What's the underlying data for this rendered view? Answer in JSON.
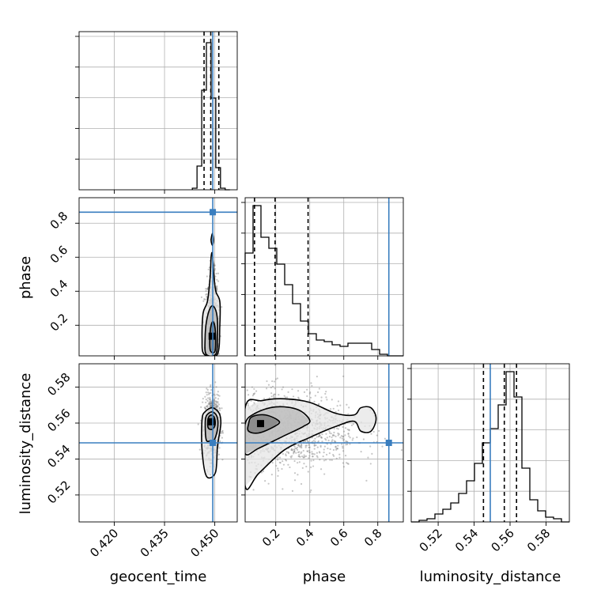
{
  "chart_data": {
    "type": "corner",
    "parameters": [
      {
        "name": "geocent_time",
        "range": [
          0.4095,
          0.4567
        ],
        "ticks": [
          "0.420",
          "0.435",
          "0.450"
        ],
        "tick_values": [
          0.42,
          0.435,
          0.45
        ],
        "truth": 0.4494,
        "quantiles": [
          0.4468,
          0.4488,
          0.4512
        ]
      },
      {
        "name": "phase",
        "range": [
          0.02,
          0.95
        ],
        "ticks": [
          "0.2",
          "0.4",
          "0.6",
          "0.8"
        ],
        "tick_values": [
          0.2,
          0.4,
          0.6,
          0.8
        ],
        "truth": 0.865,
        "quantiles": [
          0.075,
          0.196,
          0.39
        ]
      },
      {
        "name": "luminosity_distance",
        "range": [
          0.505,
          0.593
        ],
        "ticks": [
          "0.52",
          "0.54",
          "0.56",
          "0.58"
        ],
        "tick_values": [
          0.52,
          0.54,
          0.56,
          0.58
        ],
        "truth": 0.549,
        "quantiles": [
          0.5452,
          0.5568,
          0.5636
        ]
      }
    ],
    "histograms": {
      "geocent_time": {
        "edges": [
          0.4433,
          0.4447,
          0.4461,
          0.4475,
          0.4489,
          0.4503,
          0.4517,
          0.4531,
          0.4545
        ],
        "counts": [
          0.01,
          0.15,
          0.63,
          0.93,
          0.58,
          0.14,
          0.01,
          0.0
        ]
      },
      "phase": {
        "edges": [
          0.02,
          0.0665,
          0.113,
          0.1595,
          0.206,
          0.2525,
          0.299,
          0.3455,
          0.392,
          0.4385,
          0.485,
          0.5315,
          0.578,
          0.6245,
          0.671,
          0.7175,
          0.764,
          0.8105,
          0.857,
          0.9035,
          0.95
        ],
        "counts": [
          0.65,
          0.95,
          0.75,
          0.68,
          0.58,
          0.45,
          0.33,
          0.22,
          0.14,
          0.1,
          0.09,
          0.07,
          0.06,
          0.08,
          0.08,
          0.08,
          0.04,
          0.01,
          0.0,
          0.0
        ]
      },
      "luminosity_distance": {
        "edges": [
          0.505,
          0.5094,
          0.5138,
          0.5182,
          0.5226,
          0.527,
          0.5314,
          0.5358,
          0.5402,
          0.5446,
          0.549,
          0.5534,
          0.5578,
          0.5622,
          0.5666,
          0.571,
          0.5754,
          0.5798,
          0.5842,
          0.5886,
          0.593
        ],
        "counts": [
          0.0,
          0.01,
          0.02,
          0.05,
          0.08,
          0.12,
          0.18,
          0.26,
          0.37,
          0.5,
          0.59,
          0.74,
          0.95,
          0.79,
          0.34,
          0.14,
          0.07,
          0.03,
          0.02,
          0.0
        ]
      }
    },
    "pairs": [
      {
        "x": "geocent_time",
        "y": "phase",
        "contours": [
          {
            "level": "outer",
            "points": [
              [
                0.4468,
                0.03
              ],
              [
                0.4462,
                0.12
              ],
              [
                0.4465,
                0.27
              ],
              [
                0.4478,
                0.34
              ],
              [
                0.4486,
                0.48
              ],
              [
                0.4489,
                0.6
              ],
              [
                0.4493,
                0.62
              ],
              [
                0.4497,
                0.5
              ],
              [
                0.4503,
                0.4
              ],
              [
                0.4515,
                0.34
              ],
              [
                0.4515,
                0.2
              ],
              [
                0.4508,
                0.03
              ]
            ]
          },
          {
            "level": "middle",
            "points": [
              [
                0.4474,
                0.03
              ],
              [
                0.4471,
                0.12
              ],
              [
                0.4475,
                0.22
              ],
              [
                0.4486,
                0.3
              ],
              [
                0.4497,
                0.31
              ],
              [
                0.4507,
                0.25
              ],
              [
                0.4508,
                0.12
              ],
              [
                0.4503,
                0.03
              ]
            ]
          },
          {
            "level": "inner",
            "points": [
              [
                0.4487,
                0.05
              ],
              [
                0.4485,
                0.12
              ],
              [
                0.4489,
                0.2
              ],
              [
                0.4496,
                0.22
              ],
              [
                0.4502,
                0.16
              ],
              [
                0.4501,
                0.05
              ]
            ]
          },
          {
            "level": "island",
            "points": [
              [
                0.4489,
                0.7
              ],
              [
                0.4493,
                0.74
              ],
              [
                0.4496,
                0.7
              ],
              [
                0.4493,
                0.67
              ]
            ]
          }
        ]
      },
      {
        "x": "geocent_time",
        "y": "luminosity_distance",
        "contours": [
          {
            "level": "outer",
            "points": [
              [
                0.4475,
                0.5305
              ],
              [
                0.4462,
                0.545
              ],
              [
                0.4462,
                0.562
              ],
              [
                0.4472,
                0.5665
              ],
              [
                0.4493,
                0.5685
              ],
              [
                0.4513,
                0.5655
              ],
              [
                0.4518,
                0.5595
              ],
              [
                0.4508,
                0.547
              ],
              [
                0.4502,
                0.5325
              ]
            ]
          },
          {
            "level": "middle",
            "points": [
              [
                0.4474,
                0.551
              ],
              [
                0.4472,
                0.562
              ],
              [
                0.4482,
                0.5655
              ],
              [
                0.4496,
                0.566
              ],
              [
                0.4508,
                0.5628
              ],
              [
                0.4508,
                0.5565
              ],
              [
                0.4498,
                0.5505
              ],
              [
                0.4486,
                0.55
              ]
            ]
          },
          {
            "level": "inner",
            "points": [
              [
                0.448,
                0.5575
              ],
              [
                0.448,
                0.5625
              ],
              [
                0.4489,
                0.5645
              ],
              [
                0.4499,
                0.563
              ],
              [
                0.4501,
                0.559
              ],
              [
                0.4492,
                0.5565
              ]
            ]
          }
        ]
      },
      {
        "x": "phase",
        "y": "luminosity_distance",
        "contours": [
          {
            "level": "outer",
            "points": [
              [
                0.02,
                0.525
              ],
              [
                0.1,
                0.532
              ],
              [
                0.25,
                0.545
              ],
              [
                0.4,
                0.552
              ],
              [
                0.55,
                0.558
              ],
              [
                0.66,
                0.561
              ],
              [
                0.7,
                0.5555
              ],
              [
                0.76,
                0.5555
              ],
              [
                0.79,
                0.5625
              ],
              [
                0.76,
                0.5685
              ],
              [
                0.7,
                0.5685
              ],
              [
                0.66,
                0.5645
              ],
              [
                0.55,
                0.5655
              ],
              [
                0.4,
                0.5715
              ],
              [
                0.25,
                0.5735
              ],
              [
                0.12,
                0.5725
              ],
              [
                0.02,
                0.5685
              ]
            ]
          },
          {
            "level": "middle",
            "points": [
              [
                0.02,
                0.543
              ],
              [
                0.1,
                0.546
              ],
              [
                0.24,
                0.5525
              ],
              [
                0.36,
                0.558
              ],
              [
                0.4,
                0.5615
              ],
              [
                0.33,
                0.5675
              ],
              [
                0.2,
                0.569
              ],
              [
                0.08,
                0.5655
              ],
              [
                0.02,
                0.5595
              ]
            ]
          },
          {
            "level": "inner",
            "points": [
              [
                0.04,
                0.5555
              ],
              [
                0.1,
                0.5545
              ],
              [
                0.19,
                0.558
              ],
              [
                0.22,
                0.561
              ],
              [
                0.14,
                0.5645
              ],
              [
                0.06,
                0.5635
              ],
              [
                0.04,
                0.5595
              ]
            ]
          }
        ]
      }
    ],
    "grid": true
  }
}
